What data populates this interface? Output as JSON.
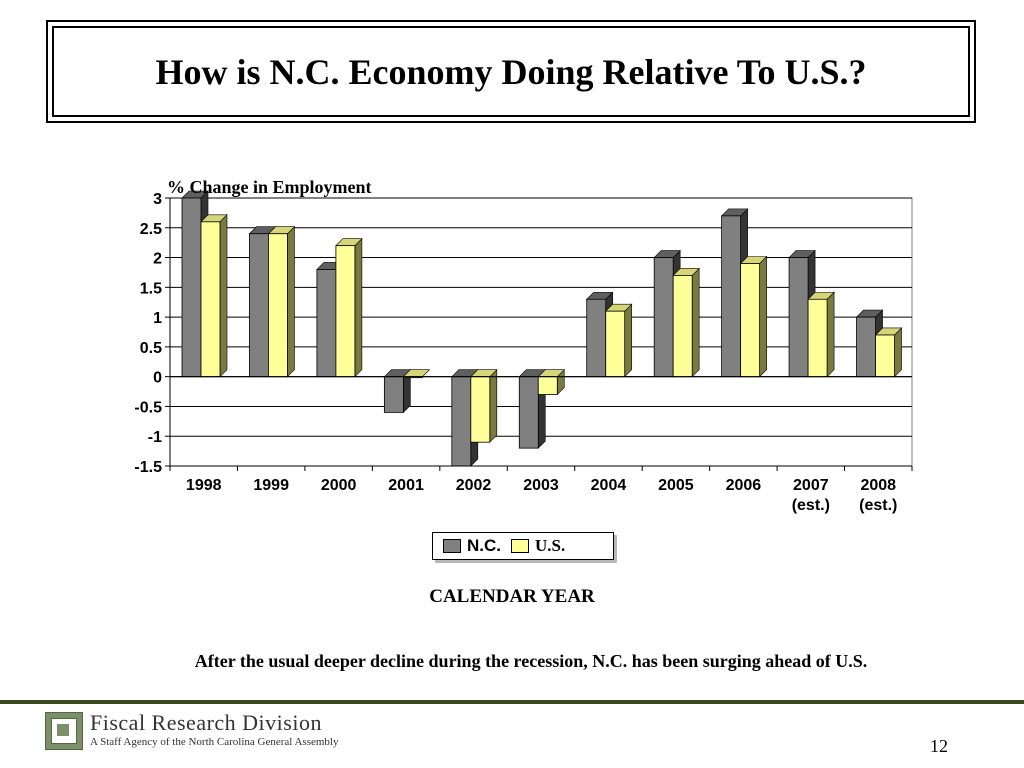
{
  "slide": {
    "title": "How is N.C. Economy Doing Relative To U.S.?",
    "caption": "After the usual deeper decline during the recession, N.C. has been surging ahead of U.S.",
    "page_number": "12"
  },
  "footer": {
    "org_name": "Fiscal Research Division",
    "org_subtitle": "A Staff Agency of the North Carolina General Assembly"
  },
  "chart_data": {
    "type": "bar",
    "title": "",
    "ylabel": "% Change in Employment",
    "xlabel": "CALENDAR YEAR",
    "ylim": [
      -1.5,
      3
    ],
    "yticks": [
      "3",
      "2.5",
      "2",
      "1.5",
      "1",
      "0.5",
      "0",
      "-0.5",
      "-1",
      "-1.5"
    ],
    "categories": [
      "1998",
      "1999",
      "2000",
      "2001",
      "2002",
      "2003",
      "2004",
      "2005",
      "2006",
      "2007 (est.)",
      "2008 (est.)"
    ],
    "category_lines": [
      [
        "1998"
      ],
      [
        "1999"
      ],
      [
        "2000"
      ],
      [
        "2001"
      ],
      [
        "2002"
      ],
      [
        "2003"
      ],
      [
        "2004"
      ],
      [
        "2005"
      ],
      [
        "2006"
      ],
      [
        "2007",
        "(est.)"
      ],
      [
        "2008",
        "(est.)"
      ]
    ],
    "series": [
      {
        "name": "N.C.",
        "color": "#808080",
        "values": [
          3.0,
          2.4,
          1.8,
          -0.6,
          -1.6,
          -1.2,
          1.3,
          2.0,
          2.7,
          2.0,
          1.0
        ]
      },
      {
        "name": "U.S.",
        "color": "#ffff99",
        "values": [
          2.6,
          2.4,
          2.2,
          0.0,
          -1.1,
          -0.3,
          1.1,
          1.7,
          1.9,
          1.3,
          0.7
        ]
      }
    ],
    "grid": true,
    "legend": "bottom-center"
  }
}
